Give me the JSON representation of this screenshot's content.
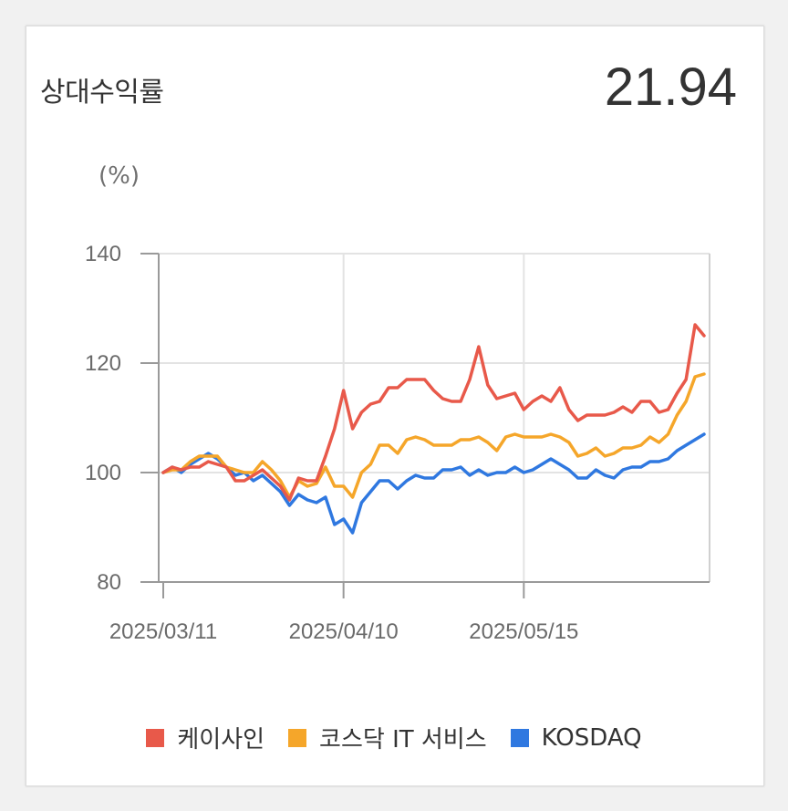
{
  "header": {
    "title": "상대수익률",
    "value": "21.94"
  },
  "chart_data": {
    "type": "line",
    "unit_label": "(%)",
    "ylim": [
      80,
      140
    ],
    "yticks": [
      "140",
      "120",
      "100",
      "80"
    ],
    "ytick_values": [
      140,
      120,
      100,
      80
    ],
    "xticks": [
      "2025/03/11",
      "2025/04/10",
      "2025/05/15"
    ],
    "xtick_index": [
      0,
      20,
      40
    ],
    "grid": true,
    "legend_position": "bottom",
    "series": [
      {
        "name": "케이사인",
        "color": "#e8594a",
        "values": [
          100,
          101,
          100.5,
          101,
          101,
          102,
          101.5,
          101,
          98.5,
          98.5,
          99.5,
          100.5,
          99,
          97.5,
          95,
          99,
          98.5,
          98.5,
          103,
          108,
          115,
          108,
          111,
          112.5,
          113,
          115.5,
          115.5,
          117,
          117,
          117,
          115,
          113.5,
          113,
          113,
          117,
          123,
          116,
          113.5,
          114,
          114.5,
          111.5,
          113,
          114,
          113,
          115.5,
          111.5,
          109.5,
          110.5,
          110.5,
          110.5,
          111,
          112,
          111,
          113,
          113,
          111,
          111.5,
          114.5,
          117,
          127,
          125
        ]
      },
      {
        "name": "코스닥 IT 서비스",
        "color": "#f5a62a",
        "values": [
          100,
          100.5,
          100.5,
          102,
          103,
          103,
          103,
          101,
          100.5,
          100,
          100,
          102,
          100.5,
          98.5,
          95.5,
          98.5,
          97.5,
          98,
          101,
          97.5,
          97.5,
          95.5,
          100,
          101.5,
          105,
          105,
          103.5,
          106,
          106.5,
          106,
          105,
          105,
          105,
          106,
          106,
          106.5,
          105.5,
          104,
          106.5,
          107,
          106.5,
          106.5,
          106.5,
          107,
          106.5,
          105.5,
          103,
          103.5,
          104.5,
          103,
          103.5,
          104.5,
          104.5,
          105,
          106.5,
          105.5,
          107,
          110.5,
          113,
          117.5,
          118
        ]
      },
      {
        "name": "KOSDAQ",
        "color": "#2f78e0",
        "values": [
          100,
          101,
          100,
          101.5,
          102.5,
          103.5,
          102.5,
          101,
          99.5,
          100,
          98.5,
          99.5,
          98,
          96.5,
          94,
          96,
          95,
          94.5,
          95.5,
          90.5,
          91.5,
          89,
          94.5,
          96.5,
          98.5,
          98.5,
          97,
          98.5,
          99.5,
          99,
          99,
          100.5,
          100.5,
          101,
          99.5,
          100.5,
          99.5,
          100,
          100,
          101,
          100,
          100.5,
          101.5,
          102.5,
          101.5,
          100.5,
          99,
          99,
          100.5,
          99.5,
          99,
          100.5,
          101,
          101,
          102,
          102,
          102.5,
          104,
          105,
          106,
          107
        ]
      }
    ]
  }
}
